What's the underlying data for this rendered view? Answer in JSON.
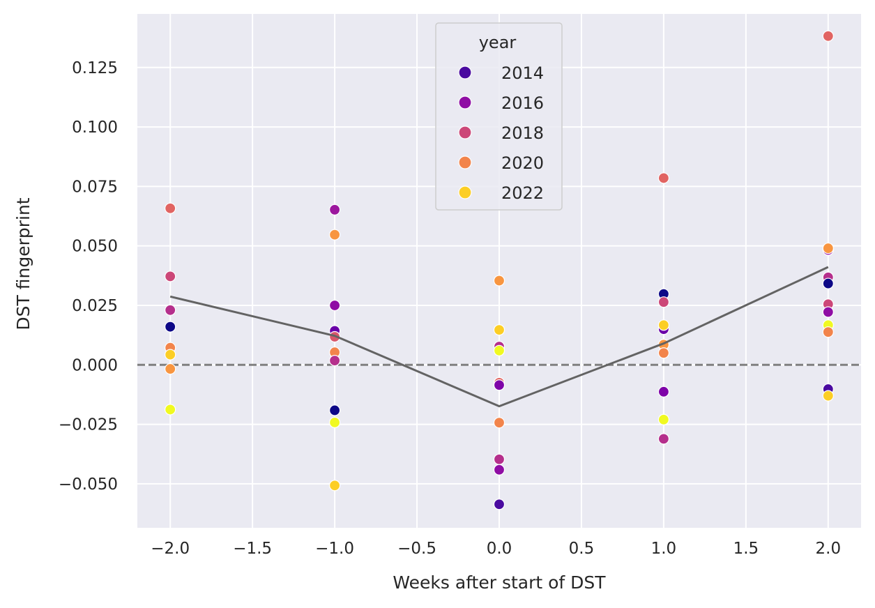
{
  "chart_data": {
    "type": "scatter",
    "title": "",
    "xlabel": "Weeks after start of DST",
    "ylabel": "DST fingerprint",
    "xlim": [
      -2.2,
      2.2
    ],
    "ylim": [
      -0.0685,
      0.1475
    ],
    "xticks": [
      -2.0,
      -1.5,
      -1.0,
      -0.5,
      0.0,
      0.5,
      1.0,
      1.5,
      2.0
    ],
    "xtick_labels": [
      "−2.0",
      "−1.5",
      "−1.0",
      "−0.5",
      "0.0",
      "0.5",
      "1.0",
      "1.5",
      "2.0"
    ],
    "yticks": [
      -0.05,
      -0.025,
      0.0,
      0.025,
      0.05,
      0.075,
      0.1,
      0.125
    ],
    "ytick_labels": [
      "−0.050",
      "−0.025",
      "0.000",
      "0.025",
      "0.050",
      "0.075",
      "0.100",
      "0.125"
    ],
    "grid": true,
    "background": "#eaeaf2",
    "legend": {
      "title": "year",
      "placement": "top-center",
      "entries": [
        {
          "label": "2014",
          "color": "#4a0aa0"
        },
        {
          "label": "2016",
          "color": "#8f0da4"
        },
        {
          "label": "2018",
          "color": "#cc4778"
        },
        {
          "label": "2020",
          "color": "#f2844b"
        },
        {
          "label": "2022",
          "color": "#fcce25"
        }
      ]
    },
    "reference_line": {
      "y": 0.0,
      "style": "dashed",
      "color": "#808080"
    },
    "mean_line": {
      "color": "#636363",
      "x": [
        -2,
        -1,
        0,
        1,
        2
      ],
      "y": [
        0.0287,
        0.0122,
        -0.0174,
        0.009,
        0.0411
      ]
    },
    "points": [
      {
        "x": -2,
        "y": 0.0658,
        "color": "#e16462"
      },
      {
        "x": -2,
        "y": 0.0372,
        "color": "#cc4778"
      },
      {
        "x": -2,
        "y": 0.023,
        "color": "#b52f8c"
      },
      {
        "x": -2,
        "y": 0.016,
        "color": "#0d0887"
      },
      {
        "x": -2,
        "y": 0.0072,
        "color": "#f2844b"
      },
      {
        "x": -2,
        "y": 0.0043,
        "color": "#fcce25"
      },
      {
        "x": -2,
        "y": -0.0017,
        "color": "#f89540"
      },
      {
        "x": -2,
        "y": -0.0188,
        "color": "#f0f921"
      },
      {
        "x": -1,
        "y": 0.0652,
        "color": "#9c179e"
      },
      {
        "x": -1,
        "y": 0.0547,
        "color": "#f89540"
      },
      {
        "x": -1,
        "y": 0.025,
        "color": "#8f0da4"
      },
      {
        "x": -1,
        "y": 0.0143,
        "color": "#6a00a8"
      },
      {
        "x": -1,
        "y": 0.0118,
        "color": "#d8576b"
      },
      {
        "x": -1,
        "y": 0.0053,
        "color": "#f2844b"
      },
      {
        "x": -1,
        "y": 0.0018,
        "color": "#b52f8c"
      },
      {
        "x": -1,
        "y": -0.0191,
        "color": "#0d0887"
      },
      {
        "x": -1,
        "y": -0.0242,
        "color": "#f0f921"
      },
      {
        "x": -1,
        "y": -0.0507,
        "color": "#fcce25"
      },
      {
        "x": 0,
        "y": 0.0354,
        "color": "#f89540"
      },
      {
        "x": 0,
        "y": 0.0147,
        "color": "#fcce25"
      },
      {
        "x": 0,
        "y": 0.0077,
        "color": "#b52f8c"
      },
      {
        "x": 0,
        "y": 0.006,
        "color": "#f0f921"
      },
      {
        "x": 0,
        "y": -0.0075,
        "color": "#e16462"
      },
      {
        "x": 0,
        "y": -0.0085,
        "color": "#7e03a8"
      },
      {
        "x": 0,
        "y": -0.0243,
        "color": "#f2844b"
      },
      {
        "x": 0,
        "y": -0.0397,
        "color": "#b52f8c"
      },
      {
        "x": 0,
        "y": -0.0441,
        "color": "#8f0da4"
      },
      {
        "x": 0,
        "y": -0.0586,
        "color": "#4a0aa0"
      },
      {
        "x": 1,
        "y": 0.0785,
        "color": "#e16462"
      },
      {
        "x": 1,
        "y": 0.0298,
        "color": "#0d0887"
      },
      {
        "x": 1,
        "y": 0.0264,
        "color": "#cc4778"
      },
      {
        "x": 1,
        "y": 0.015,
        "color": "#6a00a8"
      },
      {
        "x": 1,
        "y": 0.0167,
        "color": "#fcce25"
      },
      {
        "x": 1,
        "y": 0.0085,
        "color": "#f89540"
      },
      {
        "x": 1,
        "y": 0.005,
        "color": "#f2844b"
      },
      {
        "x": 1,
        "y": -0.0113,
        "color": "#7e03a8"
      },
      {
        "x": 1,
        "y": -0.023,
        "color": "#f0f921"
      },
      {
        "x": 1,
        "y": -0.0311,
        "color": "#b52f8c"
      },
      {
        "x": 2,
        "y": 0.1382,
        "color": "#e16462"
      },
      {
        "x": 2,
        "y": 0.0483,
        "color": "#8f0da4"
      },
      {
        "x": 2,
        "y": 0.049,
        "color": "#f89540"
      },
      {
        "x": 2,
        "y": 0.0368,
        "color": "#b52f8c"
      },
      {
        "x": 2,
        "y": 0.0342,
        "color": "#0d0887"
      },
      {
        "x": 2,
        "y": 0.0255,
        "color": "#cc4778"
      },
      {
        "x": 2,
        "y": 0.0222,
        "color": "#8f0da4"
      },
      {
        "x": 2,
        "y": 0.0167,
        "color": "#f0f921"
      },
      {
        "x": 2,
        "y": 0.0138,
        "color": "#f2844b"
      },
      {
        "x": 2,
        "y": -0.0102,
        "color": "#4a0aa0"
      },
      {
        "x": 2,
        "y": -0.013,
        "color": "#fcce25"
      }
    ]
  }
}
